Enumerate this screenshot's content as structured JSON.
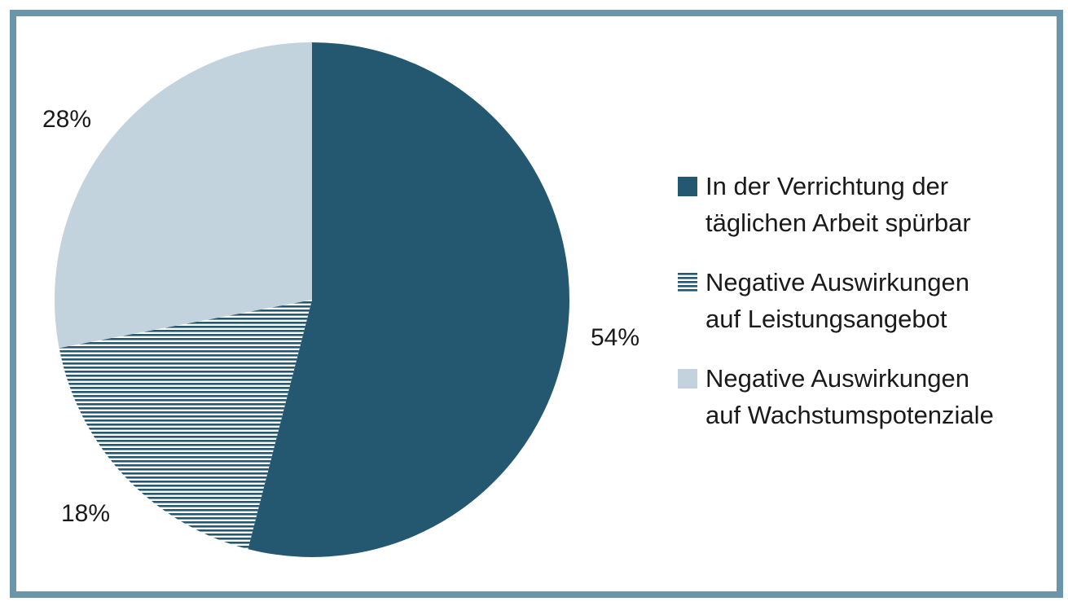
{
  "chart_data": {
    "type": "pie",
    "title": "",
    "series": [
      {
        "name": "",
        "slices": [
          {
            "label_lines": [
              "In der Verrichtung der",
              "täglichen Arbeit spürbar"
            ],
            "value": 54,
            "value_label": "54%",
            "color": "#245870",
            "pattern": "solid"
          },
          {
            "label_lines": [
              "Negative Auswirkungen",
              "auf Leistungsangebot"
            ],
            "value": 18,
            "value_label": "18%",
            "color": "#245870",
            "pattern": "horizontal-stripes"
          },
          {
            "label_lines": [
              "Negative Auswirkungen",
              "auf Wachstumspotenziale"
            ],
            "value": 28,
            "value_label": "28%",
            "color": "#c3d3dd",
            "pattern": "solid"
          }
        ]
      }
    ],
    "start_angle": "12 o'clock",
    "direction": "clockwise",
    "legend": "right",
    "border_color": "#6b96aa"
  }
}
